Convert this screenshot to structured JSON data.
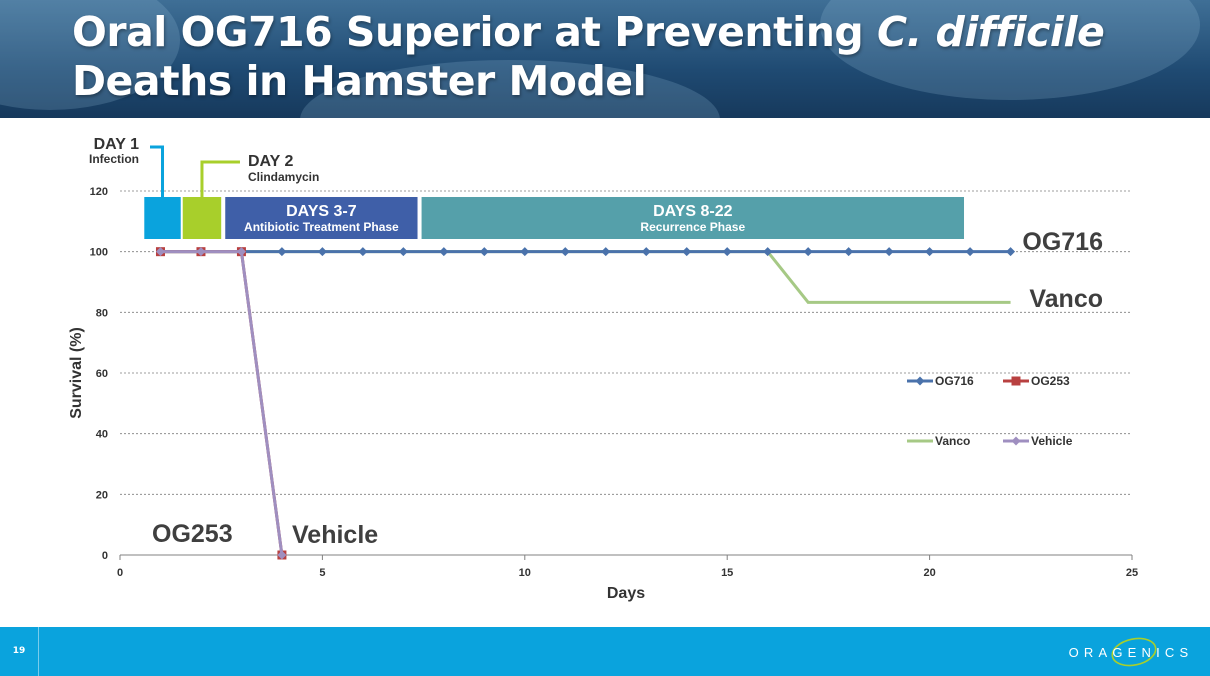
{
  "slide": {
    "title_part1": "Oral OG716 Superior at Preventing ",
    "title_italic": "C. difficile",
    "title_line2": "Deaths in Hamster Model",
    "slide_number": "19",
    "logo_text": "ORAGENICS"
  },
  "colors": {
    "header": "#1f4a72",
    "footer": "#0aa3dd",
    "day1": "#0aa3dd",
    "day2": "#a8cf2b",
    "days3_7": "#3f5fa8",
    "days8_22": "#55a0aa"
  },
  "phases": [
    {
      "label": "DAY 1",
      "sublabel": "Infection",
      "start": 0.6,
      "end": 1.5,
      "color": "#0aa3dd"
    },
    {
      "label": "DAY 2",
      "sublabel": "Clindamycin",
      "start": 1.55,
      "end": 2.5,
      "color": "#a8cf2b"
    },
    {
      "label": "DAYS 3-7",
      "sublabel": "Antibiotic Treatment Phase",
      "start": 2.6,
      "end": 7.35,
      "color": "#3f5fa8"
    },
    {
      "label": "DAYS 8-22",
      "sublabel": "Recurrence Phase",
      "start": 7.45,
      "end": 20.85,
      "color": "#55a0aa"
    }
  ],
  "chart_data": {
    "type": "line",
    "xlabel": "Days",
    "ylabel": "Survival (%)",
    "xlim": [
      0,
      25
    ],
    "ylim": [
      0,
      120
    ],
    "xticks": [
      0,
      5,
      10,
      15,
      20,
      25
    ],
    "yticks": [
      0,
      20,
      40,
      60,
      80,
      100,
      120
    ],
    "grid": "horizontal dashed",
    "legend_position": "right",
    "series": [
      {
        "name": "OG716",
        "color": "#4a72ab",
        "marker": "diamond",
        "x": [
          1,
          2,
          3,
          4,
          5,
          6,
          7,
          8,
          9,
          10,
          11,
          12,
          13,
          14,
          15,
          16,
          17,
          18,
          19,
          20,
          21,
          22
        ],
        "y": [
          100,
          100,
          100,
          100,
          100,
          100,
          100,
          100,
          100,
          100,
          100,
          100,
          100,
          100,
          100,
          100,
          100,
          100,
          100,
          100,
          100,
          100
        ]
      },
      {
        "name": "OG253",
        "color": "#b84040",
        "marker": "square",
        "x": [
          1,
          2,
          3,
          4
        ],
        "y": [
          100,
          100,
          100,
          0
        ]
      },
      {
        "name": "Vanco",
        "color": "#a6c985",
        "marker": "none",
        "x": [
          1,
          2,
          3,
          4,
          5,
          6,
          7,
          8,
          9,
          10,
          11,
          12,
          13,
          14,
          15,
          16,
          17,
          18,
          19,
          20,
          21,
          22
        ],
        "y": [
          100,
          100,
          100,
          100,
          100,
          100,
          100,
          100,
          100,
          100,
          100,
          100,
          100,
          100,
          100,
          100,
          83.3,
          83.3,
          83.3,
          83.3,
          83.3,
          83.3
        ]
      },
      {
        "name": "Vehicle",
        "color": "#9f8fc0",
        "marker": "diamond",
        "x": [
          1,
          2,
          3,
          4
        ],
        "y": [
          100,
          100,
          100,
          0
        ]
      }
    ],
    "annotations": {
      "og716": "OG716",
      "vanco": "Vanco",
      "og253": "OG253",
      "vehicle": "Vehicle"
    }
  }
}
